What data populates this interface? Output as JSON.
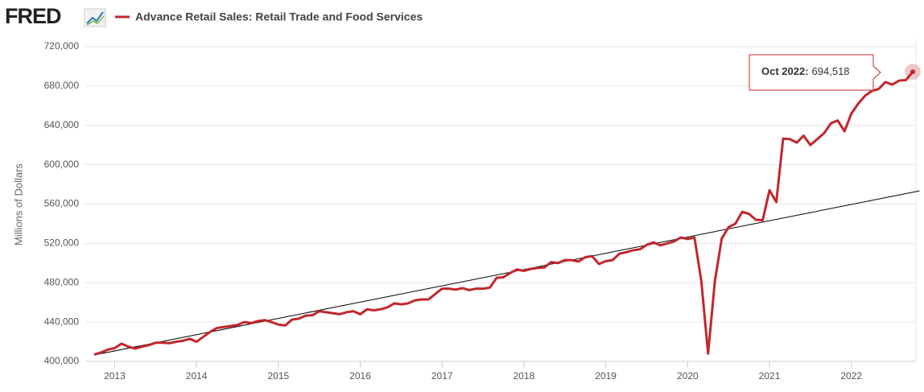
{
  "header": {
    "logo": "FRED"
  },
  "chart_data": {
    "type": "line",
    "title": "Advance Retail Sales: Retail Trade and Food Services",
    "y_label": "Millions of Dollars",
    "x": [
      "2012-10",
      "2012-11",
      "2012-12",
      "2013-01",
      "2013-02",
      "2013-03",
      "2013-04",
      "2013-05",
      "2013-06",
      "2013-07",
      "2013-08",
      "2013-09",
      "2013-10",
      "2013-11",
      "2013-12",
      "2014-01",
      "2014-02",
      "2014-03",
      "2014-04",
      "2014-05",
      "2014-06",
      "2014-07",
      "2014-08",
      "2014-09",
      "2014-10",
      "2014-11",
      "2014-12",
      "2015-01",
      "2015-02",
      "2015-03",
      "2015-04",
      "2015-05",
      "2015-06",
      "2015-07",
      "2015-08",
      "2015-09",
      "2015-10",
      "2015-11",
      "2015-12",
      "2016-01",
      "2016-02",
      "2016-03",
      "2016-04",
      "2016-05",
      "2016-06",
      "2016-07",
      "2016-08",
      "2016-09",
      "2016-10",
      "2016-11",
      "2016-12",
      "2017-01",
      "2017-02",
      "2017-03",
      "2017-04",
      "2017-05",
      "2017-06",
      "2017-07",
      "2017-08",
      "2017-09",
      "2017-10",
      "2017-11",
      "2017-12",
      "2018-01",
      "2018-02",
      "2018-03",
      "2018-04",
      "2018-05",
      "2018-06",
      "2018-07",
      "2018-08",
      "2018-09",
      "2018-10",
      "2018-11",
      "2018-12",
      "2019-01",
      "2019-02",
      "2019-03",
      "2019-04",
      "2019-05",
      "2019-06",
      "2019-07",
      "2019-08",
      "2019-09",
      "2019-10",
      "2019-11",
      "2019-12",
      "2020-01",
      "2020-02",
      "2020-03",
      "2020-04",
      "2020-05",
      "2020-06",
      "2020-07",
      "2020-08",
      "2020-09",
      "2020-10",
      "2020-11",
      "2020-12",
      "2021-01",
      "2021-02",
      "2021-03",
      "2021-04",
      "2021-05",
      "2021-06",
      "2021-07",
      "2021-08",
      "2021-09",
      "2021-10",
      "2021-11",
      "2021-12",
      "2022-01",
      "2022-02",
      "2022-03",
      "2022-04",
      "2022-05",
      "2022-06",
      "2022-07",
      "2022-08",
      "2022-09",
      "2022-10"
    ],
    "series": [
      {
        "name": "Advance Retail Sales: Retail Trade and Food Services",
        "color": "#c1272d",
        "values": [
          407000,
          409000,
          412000,
          413500,
          418000,
          415000,
          413000,
          415000,
          416500,
          419000,
          419000,
          418500,
          420000,
          421000,
          423000,
          420000,
          425000,
          430000,
          434000,
          435000,
          436000,
          437000,
          440000,
          439000,
          441000,
          442000,
          440000,
          437500,
          436500,
          442500,
          443500,
          446500,
          447000,
          451000,
          450000,
          449000,
          448000,
          450000,
          451000,
          448000,
          453000,
          452000,
          453000,
          455000,
          459000,
          458000,
          459000,
          462000,
          463000,
          463000,
          468500,
          474000,
          474000,
          473000,
          474500,
          472500,
          474000,
          474000,
          475000,
          485000,
          485500,
          490000,
          493500,
          492000,
          494000,
          495000,
          495500,
          501000,
          500000,
          503000,
          503000,
          501500,
          506000,
          507000,
          499000,
          502000,
          503000,
          509500,
          511000,
          513000,
          514000,
          518500,
          521000,
          518000,
          520000,
          522000,
          526000,
          524500,
          526000,
          482000,
          408000,
          482000,
          525000,
          536500,
          540000,
          552000,
          550000,
          544000,
          543500,
          574000,
          562000,
          626500,
          626000,
          622500,
          629500,
          620000,
          626000,
          632000,
          642000,
          645000,
          634000,
          652000,
          662000,
          670000,
          675000,
          677000,
          684000,
          681500,
          685500,
          686000,
          694518
        ]
      }
    ],
    "reference_line": {
      "x": [
        "2012-10",
        "2022-11"
      ],
      "values": [
        406500,
        573400
      ],
      "color": "#000000"
    },
    "tooltip": {
      "label": "Oct 2022:",
      "value_label": "694,518"
    },
    "xlim": [
      "2012-10",
      "2022-10"
    ],
    "xticks": [
      2013,
      2014,
      2015,
      2016,
      2017,
      2018,
      2019,
      2020,
      2021,
      2022
    ],
    "ylim": [
      400000,
      720000
    ],
    "yticks": [
      {
        "value": 400000,
        "label": "400,000"
      },
      {
        "value": 440000,
        "label": "440,000"
      },
      {
        "value": 480000,
        "label": "480,000"
      },
      {
        "value": 520000,
        "label": "520,000"
      },
      {
        "value": 560000,
        "label": "560,000"
      },
      {
        "value": 600000,
        "label": "600,000"
      },
      {
        "value": 640000,
        "label": "640,000"
      },
      {
        "value": 680000,
        "label": "680,000"
      },
      {
        "value": 720000,
        "label": "720,000"
      }
    ],
    "grid": true
  }
}
